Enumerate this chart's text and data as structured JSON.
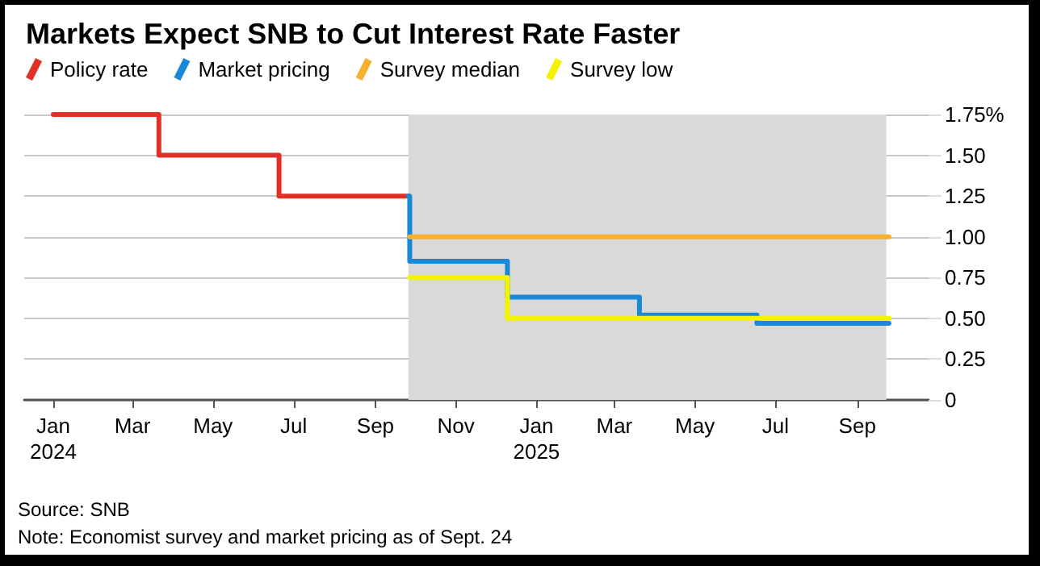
{
  "chart_data": {
    "type": "step",
    "title": "Markets Expect SNB to Cut Interest Rate Faster",
    "annotations": [
      "Source: SNB",
      "Note: Economist survey and market pricing as of Sept. 24"
    ],
    "series": [
      {
        "name": "Policy rate",
        "color": "#e03127",
        "x": [
          "2024-01-01",
          "2024-03-21",
          "2024-06-20",
          "2024-09-26"
        ],
        "values": [
          1.75,
          1.5,
          1.25,
          1.25
        ]
      },
      {
        "name": "Market pricing",
        "color": "#1a88d8",
        "x": [
          "2024-09-26",
          "2024-09-27",
          "2024-12-10",
          "2025-03-20",
          "2025-06-17",
          "2025-09-25"
        ],
        "values": [
          1.25,
          0.85,
          0.63,
          0.52,
          0.47,
          0.47
        ]
      },
      {
        "name": "Survey median",
        "color": "#f7b12f",
        "x": [
          "2024-09-27",
          "2025-09-25"
        ],
        "values": [
          1.0,
          1.0
        ]
      },
      {
        "name": "Survey low",
        "color": "#f5f200",
        "x": [
          "2024-09-27",
          "2024-12-10",
          "2025-09-25"
        ],
        "values": [
          0.75,
          0.5,
          0.5
        ]
      }
    ],
    "xlim": [
      "2023-12-10",
      "2025-10-25"
    ],
    "xticks": [
      {
        "value": "2024-01",
        "label": "Jan\n2024"
      },
      {
        "value": "2024-03",
        "label": "Mar"
      },
      {
        "value": "2024-05",
        "label": "May"
      },
      {
        "value": "2024-07",
        "label": "Jul"
      },
      {
        "value": "2024-09",
        "label": "Sep"
      },
      {
        "value": "2024-11",
        "label": "Nov"
      },
      {
        "value": "2025-01",
        "label": "Jan\n2025"
      },
      {
        "value": "2025-03",
        "label": "Mar"
      },
      {
        "value": "2025-05",
        "label": "May"
      },
      {
        "value": "2025-07",
        "label": "Jul"
      },
      {
        "value": "2025-09",
        "label": "Sep"
      }
    ],
    "ylim": [
      0,
      1.75
    ],
    "yticks": [
      0,
      0.25,
      {
        "value": 0.5,
        "label": "0.50"
      },
      0.75,
      {
        "value": 1,
        "label": "1.00"
      },
      1.25,
      {
        "value": 1.5,
        "label": "1.50"
      },
      {
        "value": 1.75,
        "label": "1.75%"
      }
    ],
    "bands": [
      {
        "axis": "x",
        "from": "2024-09-26",
        "to": "2025-09-23",
        "color": "#d9d9d9"
      }
    ],
    "grid": "y",
    "legend": "top left",
    "marker": "none",
    "line_style": "solid"
  }
}
